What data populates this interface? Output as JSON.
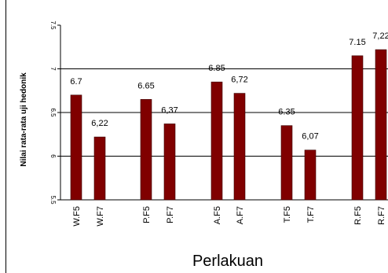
{
  "chart_data": {
    "type": "bar",
    "categories": [
      "W.F5",
      "W.F7",
      "P.F5",
      "P.F7",
      "A.F5",
      "A.F7",
      "T.F5",
      "T.F7",
      "R.F5",
      "R.F7"
    ],
    "values": [
      6.7,
      6.22,
      6.65,
      6.37,
      6.85,
      6.72,
      6.35,
      6.07,
      7.15,
      7.22
    ],
    "data_labels": [
      "6.7",
      "6,22",
      "6.65",
      "6,37",
      "6.85",
      "6,72",
      "6.35",
      "6,07",
      "7.15",
      "7,22"
    ],
    "ylabel": "Nilai rata-rata uji hedonik",
    "xlabel": "Perlakuan",
    "ylim": [
      5.5,
      7.5
    ],
    "yticks": [
      "5.5",
      "6",
      "6.5",
      "7",
      "7.5"
    ],
    "grid": true,
    "bar_color": "#800000"
  }
}
